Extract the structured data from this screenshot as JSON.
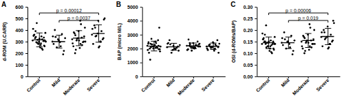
{
  "chart_data": [
    {
      "type": "scatter",
      "title": "A",
      "y_label": "d-ROM (U.CARR)",
      "categories": [
        "Control",
        "Mild",
        "Moderate",
        "Severe"
      ],
      "values": [
        [
          310,
          285,
          340,
          265,
          300,
          355,
          320,
          290,
          375,
          250,
          330,
          305,
          280,
          410,
          345,
          295,
          260,
          325,
          360,
          230,
          315,
          300,
          270,
          390,
          335,
          285,
          350,
          240,
          460,
          305
        ],
        [
          300,
          260,
          340,
          220,
          310,
          280,
          365,
          250,
          330,
          295,
          400,
          190,
          320,
          345
        ],
        [
          320,
          280,
          355,
          300,
          390,
          260,
          335,
          310,
          420,
          245,
          370,
          295,
          330,
          285,
          450,
          230,
          345,
          310,
          380,
          270,
          325,
          300,
          480,
          200
        ],
        [
          360,
          300,
          420,
          330,
          480,
          280,
          390,
          350,
          500,
          260,
          440,
          320,
          370,
          410,
          300,
          345,
          490,
          250
        ]
      ],
      "mean": [
        315,
        300,
        330,
        370
      ],
      "sd": [
        60,
        55,
        65,
        75
      ],
      "ylim": [
        0,
        600
      ],
      "yticks": [
        0,
        100,
        200,
        300,
        400,
        500,
        600
      ],
      "annotations": [
        {
          "text": "p = 0.00012",
          "from": "Control",
          "to": "Severe"
        },
        {
          "text": "p = 0.0037",
          "from": "Mild",
          "to": "Severe"
        }
      ]
    },
    {
      "type": "scatter",
      "title": "B",
      "y_label": "BAP (micro M/L)",
      "categories": [
        "Control",
        "Mild",
        "Moderate",
        "Severe"
      ],
      "values": [
        [
          2200,
          2050,
          2350,
          1950,
          2150,
          2450,
          2100,
          2300,
          1800,
          2250,
          2000,
          2600,
          2150,
          1900,
          2400,
          2100,
          3500,
          2250,
          1700,
          2050,
          2300,
          2150,
          2500,
          1200,
          2200,
          2000,
          2350,
          2100,
          2700,
          1950
        ],
        [
          2100,
          1950,
          2300,
          1850,
          2200,
          2400,
          2050,
          1700,
          2250,
          2000,
          2600,
          2150,
          1900,
          2350
        ],
        [
          2200,
          2050,
          2300,
          2150,
          2400,
          1950,
          2250,
          2100,
          2350,
          2000,
          2200,
          2500,
          2100,
          1900,
          2250,
          2150,
          2300,
          2050,
          2650,
          2200,
          1850,
          2150,
          2100,
          2400
        ],
        [
          2150,
          2000,
          2300,
          2100,
          2450,
          1900,
          2200,
          2050,
          2350,
          1850,
          2250,
          2600,
          2100,
          2000,
          2300,
          2150,
          1700,
          2400
        ]
      ],
      "mean": [
        2180,
        2130,
        2200,
        2170
      ],
      "sd": [
        350,
        250,
        200,
        230
      ],
      "ylim": [
        0,
        5000
      ],
      "yticks": [
        0,
        1000,
        2000,
        3000,
        4000,
        5000
      ]
    },
    {
      "type": "scatter",
      "title": "C",
      "y_label": "OSI (d-ROMs/BAP)",
      "categories": [
        "Control",
        "Mild",
        "Moderate",
        "Severe"
      ],
      "values": [
        [
          0.14,
          0.13,
          0.15,
          0.12,
          0.145,
          0.16,
          0.135,
          0.125,
          0.17,
          0.11,
          0.15,
          0.14,
          0.13,
          0.185,
          0.155,
          0.14,
          0.115,
          0.15,
          0.165,
          0.1,
          0.145,
          0.14,
          0.12,
          0.18,
          0.15,
          0.13,
          0.16,
          0.105,
          0.22,
          0.14
        ],
        [
          0.145,
          0.125,
          0.16,
          0.11,
          0.15,
          0.135,
          0.175,
          0.12,
          0.155,
          0.14,
          0.19,
          0.095,
          0.15,
          0.165
        ],
        [
          0.15,
          0.13,
          0.165,
          0.14,
          0.18,
          0.12,
          0.155,
          0.145,
          0.2,
          0.115,
          0.17,
          0.14,
          0.155,
          0.13,
          0.21,
          0.11,
          0.16,
          0.145,
          0.175,
          0.125,
          0.15,
          0.14,
          0.225,
          0.1
        ],
        [
          0.17,
          0.14,
          0.19,
          0.155,
          0.215,
          0.13,
          0.18,
          0.165,
          0.23,
          0.125,
          0.2,
          0.15,
          0.17,
          0.19,
          0.14,
          0.16,
          0.24,
          0.12
        ]
      ],
      "mean": [
        0.145,
        0.145,
        0.155,
        0.172
      ],
      "sd": [
        0.025,
        0.025,
        0.03,
        0.035
      ],
      "ylim": [
        0,
        0.3
      ],
      "yticks": [
        {
          "value": 0,
          "label": "0.00"
        },
        {
          "value": 0.05,
          "label": "0.05"
        },
        {
          "value": 0.1,
          "label": "0.10"
        },
        {
          "value": 0.15,
          "label": "0.15"
        },
        {
          "value": 0.2,
          "label": "0.20"
        },
        {
          "value": 0.25,
          "label": "0.25"
        },
        {
          "value": 0.3,
          "label": "0.30"
        }
      ],
      "annotations": [
        {
          "text": "p = 0.00006",
          "from": "Control",
          "to": "Severe"
        },
        {
          "text": "p = 0.019",
          "from": "Mild",
          "to": "Severe"
        }
      ]
    }
  ]
}
